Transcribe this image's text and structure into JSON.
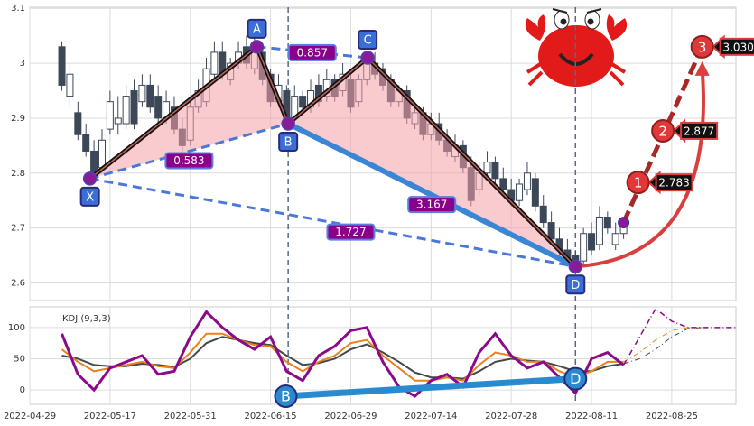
{
  "chart_data": [
    {
      "type": "candlestick",
      "xlim": [
        -10,
        78
      ],
      "ylim": [
        2.568,
        3.102
      ],
      "yticks": [
        2.6,
        2.7,
        2.8,
        2.9,
        3.0,
        3.1
      ],
      "grid": true,
      "up_color": "#ffffff",
      "down_color": "#3c4858",
      "edge_color": "#3c4858",
      "x": [
        -6,
        -5,
        -4,
        -3,
        -2,
        -1,
        0,
        1,
        2,
        3,
        4,
        5,
        6,
        7,
        8,
        9,
        10,
        11,
        12,
        13,
        14,
        15,
        16,
        17,
        18,
        19,
        20,
        21,
        22,
        23,
        24,
        25,
        26,
        27,
        28,
        29,
        30,
        31,
        32,
        33,
        34,
        35,
        36,
        37,
        38,
        39,
        40,
        41,
        42,
        43,
        44,
        45,
        46,
        47,
        48,
        49,
        50,
        51,
        52,
        53,
        54,
        55,
        56,
        57,
        58,
        59,
        60,
        61,
        62,
        63,
        64
      ],
      "open": [
        3.03,
        2.94,
        2.91,
        2.87,
        2.84,
        2.81,
        2.88,
        2.89,
        2.89,
        2.95,
        2.93,
        2.96,
        2.94,
        2.9,
        2.92,
        2.88,
        2.86,
        2.92,
        2.93,
        2.98,
        3.02,
        2.97,
        3.0,
        3.03,
        2.99,
        3.02,
        2.98,
        2.93,
        2.95,
        2.9,
        2.94,
        2.92,
        2.96,
        2.94,
        2.97,
        2.95,
        2.97,
        2.93,
        2.97,
        3.0,
        2.99,
        2.97,
        2.93,
        2.95,
        2.89,
        2.91,
        2.87,
        2.89,
        2.86,
        2.83,
        2.85,
        2.81,
        2.77,
        2.8,
        2.82,
        2.79,
        2.77,
        2.75,
        2.77,
        2.79,
        2.74,
        2.71,
        2.68,
        2.66,
        2.65,
        2.64,
        2.69,
        2.67,
        2.72,
        2.67,
        2.69
      ],
      "high": [
        3.04,
        3.0,
        2.93,
        2.89,
        2.86,
        2.88,
        2.95,
        2.94,
        2.96,
        2.97,
        2.98,
        2.98,
        2.96,
        2.95,
        2.94,
        2.9,
        2.94,
        2.97,
        3.01,
        3.04,
        3.04,
        3.01,
        3.04,
        3.05,
        3.05,
        3.03,
        2.99,
        2.98,
        2.96,
        2.96,
        2.95,
        2.97,
        2.98,
        2.99,
        2.98,
        3.0,
        2.98,
        2.98,
        3.02,
        3.02,
        3.0,
        2.98,
        2.96,
        2.96,
        2.93,
        2.92,
        2.91,
        2.91,
        2.88,
        2.87,
        2.86,
        2.83,
        2.82,
        2.84,
        2.83,
        2.81,
        2.79,
        2.79,
        2.82,
        2.8,
        2.76,
        2.73,
        2.7,
        2.68,
        2.66,
        2.7,
        2.71,
        2.74,
        2.73,
        2.71,
        2.72
      ],
      "low": [
        2.95,
        2.92,
        2.86,
        2.83,
        2.79,
        2.8,
        2.87,
        2.87,
        2.88,
        2.88,
        2.92,
        2.91,
        2.89,
        2.89,
        2.87,
        2.84,
        2.85,
        2.91,
        2.92,
        2.97,
        2.97,
        2.96,
        2.99,
        2.99,
        2.98,
        2.96,
        2.92,
        2.92,
        2.89,
        2.89,
        2.91,
        2.91,
        2.92,
        2.93,
        2.93,
        2.94,
        2.91,
        2.92,
        2.96,
        2.97,
        2.95,
        2.92,
        2.92,
        2.89,
        2.88,
        2.86,
        2.86,
        2.85,
        2.83,
        2.82,
        2.8,
        2.74,
        2.76,
        2.79,
        2.78,
        2.76,
        2.74,
        2.74,
        2.76,
        2.73,
        2.7,
        2.67,
        2.65,
        2.63,
        2.62,
        2.63,
        2.65,
        2.66,
        2.69,
        2.66,
        2.68
      ],
      "close": [
        2.96,
        2.98,
        2.87,
        2.84,
        2.8,
        2.86,
        2.93,
        2.9,
        2.94,
        2.89,
        2.96,
        2.92,
        2.9,
        2.93,
        2.88,
        2.85,
        2.92,
        2.95,
        2.99,
        3.02,
        2.98,
        3.0,
        3.02,
        3.0,
        3.03,
        2.97,
        2.93,
        2.96,
        2.9,
        2.94,
        2.92,
        2.95,
        2.93,
        2.97,
        2.94,
        2.98,
        2.92,
        2.97,
        3.0,
        2.98,
        2.96,
        2.93,
        2.95,
        2.9,
        2.91,
        2.87,
        2.89,
        2.86,
        2.84,
        2.85,
        2.81,
        2.75,
        2.8,
        2.82,
        2.79,
        2.77,
        2.75,
        2.78,
        2.8,
        2.74,
        2.71,
        2.68,
        2.66,
        2.64,
        2.63,
        2.69,
        2.66,
        2.72,
        2.7,
        2.69,
        2.71
      ],
      "pattern": [
        {
          "label": "X",
          "x": -2.5,
          "y": 2.79
        },
        {
          "label": "A",
          "x": 18.3,
          "y": 3.03
        },
        {
          "label": "B",
          "x": 22.2,
          "y": 2.89
        },
        {
          "label": "C",
          "x": 32.1,
          "y": 3.01
        },
        {
          "label": "D",
          "x": 58,
          "y": 2.63
        }
      ],
      "ratios": [
        0.583,
        0.857,
        3.167,
        1.727
      ],
      "last": {
        "x": 64,
        "y": 2.71
      },
      "projections": [
        {
          "label": "1",
          "x": 65.8,
          "value": 2.783,
          "value_label": "2.783"
        },
        {
          "label": "2",
          "x": 68.9,
          "value": 2.877,
          "value_label": "2.877"
        },
        {
          "label": "3",
          "x": 73.8,
          "value": 3.03,
          "value_label": "3.030"
        }
      ]
    },
    {
      "type": "line",
      "title": "KDJ (9,3,3)",
      "xlim": [
        -10,
        78
      ],
      "ylim": [
        -23,
        133
      ],
      "yticks": [
        0,
        50,
        100
      ],
      "xticks": [
        {
          "value": -10,
          "label": "2022-04-29"
        },
        {
          "value": 0,
          "label": "2022-05-17"
        },
        {
          "value": 10,
          "label": "2022-05-31"
        },
        {
          "value": 20,
          "label": "2022-06-15"
        },
        {
          "value": 30,
          "label": "2022-06-29"
        },
        {
          "value": 40,
          "label": "2022-07-14"
        },
        {
          "value": 50,
          "label": "2022-07-28"
        },
        {
          "value": 60,
          "label": "2022-08-11"
        },
        {
          "value": 70,
          "label": "2022-08-25"
        }
      ],
      "grid": true,
      "series": [
        {
          "color": "#404848",
          "width": 2,
          "x": [
            -6,
            -4,
            -2,
            0,
            2,
            4,
            6,
            8,
            10,
            12,
            14,
            16,
            18,
            20,
            22,
            24,
            26,
            28,
            30,
            32,
            34,
            36,
            38,
            40,
            42,
            44,
            46,
            48,
            50,
            52,
            54,
            56,
            58,
            60,
            62,
            64
          ],
          "values": [
            55,
            50,
            40,
            38,
            38,
            42,
            40,
            37,
            50,
            75,
            85,
            80,
            75,
            72,
            55,
            40,
            43,
            50,
            65,
            73,
            60,
            45,
            28,
            20,
            20,
            18,
            30,
            45,
            50,
            47,
            45,
            38,
            30,
            30,
            38,
            42
          ]
        },
        {
          "color": "#e8821e",
          "width": 2,
          "x": [
            -6,
            -4,
            -2,
            0,
            2,
            4,
            6,
            8,
            10,
            12,
            14,
            16,
            18,
            20,
            22,
            24,
            26,
            28,
            30,
            32,
            34,
            36,
            38,
            40,
            42,
            44,
            46,
            48,
            50,
            52,
            54,
            56,
            58,
            60,
            62,
            64
          ],
          "values": [
            65,
            45,
            30,
            35,
            40,
            45,
            38,
            35,
            60,
            90,
            90,
            80,
            72,
            70,
            45,
            30,
            45,
            55,
            75,
            80,
            55,
            35,
            15,
            15,
            20,
            15,
            40,
            60,
            55,
            45,
            45,
            30,
            20,
            30,
            45,
            45
          ]
        },
        {
          "color": "#8b0a8b",
          "width": 3,
          "x": [
            -6,
            -4,
            -2,
            0,
            2,
            4,
            6,
            8,
            10,
            12,
            14,
            16,
            18,
            20,
            22,
            24,
            26,
            28,
            30,
            32,
            34,
            36,
            38,
            40,
            42,
            44,
            46,
            48,
            50,
            52,
            54,
            56,
            58,
            60,
            62,
            64
          ],
          "values": [
            90,
            25,
            0,
            35,
            45,
            55,
            25,
            30,
            85,
            125,
            100,
            80,
            65,
            85,
            30,
            15,
            55,
            70,
            95,
            100,
            45,
            5,
            -10,
            15,
            25,
            5,
            60,
            90,
            55,
            35,
            45,
            20,
            -5,
            50,
            60,
            40
          ]
        },
        {
          "color": "#404848",
          "width": 1,
          "dash": true,
          "x": [
            64,
            66,
            68,
            70,
            72,
            74
          ],
          "values": [
            42,
            50,
            65,
            85,
            98,
            100
          ]
        },
        {
          "color": "#e8821e",
          "width": 1,
          "dash": true,
          "x": [
            64,
            66,
            68,
            70,
            72,
            74
          ],
          "values": [
            45,
            60,
            80,
            95,
            100,
            100
          ]
        },
        {
          "color": "#8b0a8b",
          "width": 1.5,
          "dash": true,
          "x": [
            64,
            66,
            68,
            70,
            72,
            74,
            78
          ],
          "values": [
            40,
            85,
            130,
            110,
            100,
            100,
            100
          ]
        }
      ],
      "points": [
        {
          "label": "B",
          "x": 21.9,
          "y": -10
        },
        {
          "label": "D",
          "x": 58,
          "y": 18
        }
      ]
    }
  ]
}
